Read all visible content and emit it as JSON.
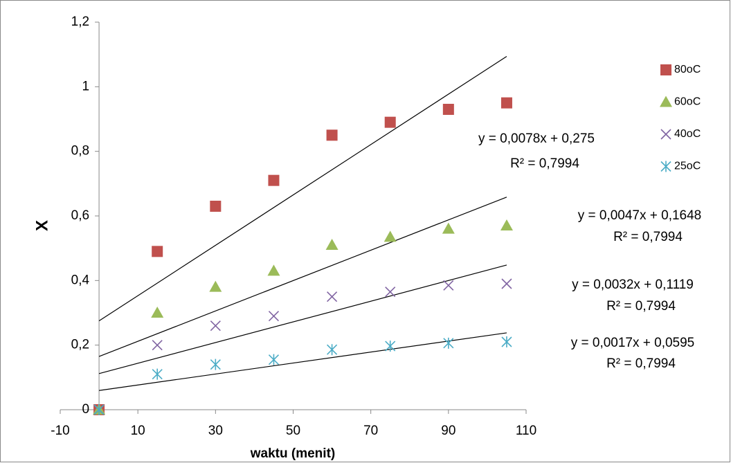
{
  "chart_data": {
    "type": "scatter",
    "x_label": "waktu (menit)",
    "y_label": "X",
    "x": [
      0,
      15,
      30,
      45,
      60,
      75,
      90,
      105
    ],
    "xlim": [
      -10,
      110
    ],
    "xticks": [
      -10,
      10,
      30,
      50,
      70,
      90,
      110
    ],
    "ylim": [
      0,
      1.2
    ],
    "yticks": [
      0,
      {
        "value": 0.2,
        "label": "0,2"
      },
      {
        "value": 0.4,
        "label": "0,4"
      },
      {
        "value": 0.6,
        "label": "0,6"
      },
      {
        "value": 0.8,
        "label": "0,8"
      },
      1,
      {
        "value": 1.2,
        "label": "1,2"
      }
    ],
    "grid": false,
    "legend": "right",
    "series": [
      {
        "name": "80oC",
        "color": "#c0504d",
        "marker": "square",
        "values": [
          0,
          0.49,
          0.63,
          0.71,
          0.85,
          0.89,
          0.93,
          0.95
        ],
        "trendline": {
          "slope": 0.0078,
          "intercept": 0.275,
          "equation": "y = 0,0078x + 0,275",
          "r2": "R² = 0,7994"
        }
      },
      {
        "name": "60oC",
        "color": "#9bbb59",
        "marker": "triangle",
        "values": [
          0,
          0.3,
          0.38,
          0.43,
          0.51,
          0.535,
          0.56,
          0.57
        ],
        "trendline": {
          "slope": 0.0047,
          "intercept": 0.1648,
          "equation": "y = 0,0047x + 0,1648",
          "r2": "R² = 0,7994"
        }
      },
      {
        "name": "40oC",
        "color": "#8064a2",
        "marker": "cross",
        "values": [
          0,
          0.2,
          0.26,
          0.29,
          0.35,
          0.365,
          0.385,
          0.39
        ],
        "trendline": {
          "slope": 0.0032,
          "intercept": 0.1119,
          "equation": "y = 0,0032x + 0,1119",
          "r2": "R² = 0,7994"
        }
      },
      {
        "name": "25oC",
        "color": "#4bacc6",
        "marker": "star",
        "values": [
          0,
          0.11,
          0.14,
          0.155,
          0.186,
          0.197,
          0.206,
          0.21
        ],
        "trendline": {
          "slope": 0.0017,
          "intercept": 0.0595,
          "equation": "y = 0,0017x + 0,0595",
          "r2": "R² = 0,7994"
        }
      }
    ]
  }
}
